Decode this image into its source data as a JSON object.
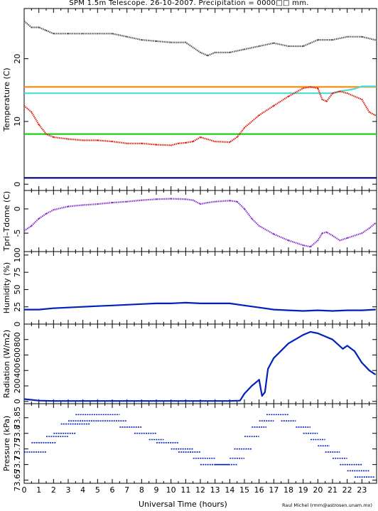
{
  "title": "SPM 1.5m Telescope. 26-10-2007. Precipitation = 0000□□ mm.",
  "credit": "Raul Michel (rmm@astrosen.unam.mx)",
  "chart_data": [
    {
      "type": "line",
      "panel": "temperature",
      "ylabel": "Temperature (C)",
      "ylim": [
        -1,
        28
      ],
      "yticks": [
        0,
        10,
        20
      ],
      "xlim": [
        0,
        24
      ],
      "series": [
        {
          "color": "#555555",
          "style": "dots",
          "x": [
            0,
            0.5,
            1,
            1.5,
            2,
            3,
            4,
            5,
            6,
            7,
            8,
            9,
            10,
            11,
            12,
            12.5,
            13,
            14,
            15,
            16,
            17,
            18,
            19,
            19.5,
            20,
            21,
            22,
            23,
            23.9
          ],
          "y": [
            26,
            25,
            25,
            24.5,
            24,
            24,
            24,
            24,
            24,
            23.5,
            23,
            22.8,
            22.6,
            22.6,
            21,
            20.5,
            21,
            21,
            21.5,
            22,
            22.5,
            22,
            22,
            22.5,
            23,
            23,
            23.5,
            23.5,
            23
          ]
        },
        {
          "color": "#ff8800",
          "style": "line",
          "x": [
            0,
            24
          ],
          "y": [
            15.5,
            15.5
          ]
        },
        {
          "color": "#44dddd",
          "style": "line",
          "x": [
            0,
            20,
            21,
            21.5,
            22,
            22.5,
            23,
            23.9
          ],
          "y": [
            14.5,
            14.5,
            14.5,
            14.8,
            15,
            15.2,
            15.6,
            15.6
          ]
        },
        {
          "color": "#22cc22",
          "style": "line",
          "x": [
            0,
            24
          ],
          "y": [
            8,
            8
          ]
        },
        {
          "color": "#dd2211",
          "style": "dots",
          "x": [
            0,
            0.5,
            1,
            1.5,
            2,
            3,
            4,
            5,
            6,
            7,
            8,
            9,
            10,
            10.5,
            11,
            11.5,
            12,
            13,
            14,
            14.5,
            15,
            16,
            17,
            18,
            19,
            19.5,
            20,
            20.3,
            20.6,
            21,
            21.5,
            22,
            23,
            23.5,
            23.9
          ],
          "y": [
            12.5,
            11.5,
            9.5,
            8,
            7.5,
            7.2,
            7,
            7,
            6.8,
            6.5,
            6.5,
            6.3,
            6.2,
            6.5,
            6.6,
            6.8,
            7.5,
            6.8,
            6.7,
            7.5,
            9,
            11,
            12.5,
            14,
            15.3,
            15.5,
            15.3,
            13.5,
            13.2,
            14.5,
            14.8,
            14.5,
            13.5,
            11.5,
            11
          ]
        },
        {
          "color": "#000080",
          "style": "line",
          "x": [
            0,
            24
          ],
          "y": [
            1,
            1
          ]
        }
      ]
    },
    {
      "type": "line",
      "panel": "tpri-tdome",
      "ylabel": "Tpri–Tdome (C)",
      "ylim": [
        -8.8,
        3.8
      ],
      "yticks": [
        -5,
        0
      ],
      "xlim": [
        0,
        24
      ],
      "series": [
        {
          "color": "#8833cc",
          "style": "dots",
          "x": [
            0,
            0.5,
            1,
            1.5,
            2,
            3,
            4,
            5,
            6,
            7,
            8,
            9,
            10,
            11,
            11.5,
            12,
            12.5,
            13,
            14,
            14.5,
            15,
            15.5,
            16,
            17,
            18,
            19,
            19.5,
            20,
            20.3,
            20.6,
            21,
            21.5,
            22,
            23,
            23.5,
            23.9
          ],
          "y": [
            -4.5,
            -3.5,
            -2,
            -1,
            -0.2,
            0.5,
            0.8,
            1,
            1.3,
            1.5,
            1.8,
            2,
            2.1,
            2,
            1.8,
            1,
            1.3,
            1.5,
            1.7,
            1.5,
            0,
            -2,
            -3.5,
            -5.2,
            -6.5,
            -7.5,
            -7.8,
            -6.5,
            -5,
            -4.8,
            -5.5,
            -6.5,
            -6,
            -5,
            -4,
            -3
          ]
        }
      ]
    },
    {
      "type": "line",
      "panel": "humidity",
      "ylabel": "Humidity (%)",
      "ylim": [
        0,
        105
      ],
      "yticks": [
        0,
        25,
        50,
        75,
        100
      ],
      "xlim": [
        0,
        24
      ],
      "series": [
        {
          "color": "#0022bb",
          "style": "line",
          "x": [
            0,
            1,
            2,
            3,
            4,
            5,
            6,
            7,
            8,
            9,
            10,
            11,
            12,
            13,
            14,
            15,
            16,
            17,
            18,
            19,
            20,
            21,
            22,
            23,
            23.9
          ],
          "y": [
            21,
            21,
            23,
            24,
            25,
            26,
            27,
            28,
            29,
            30,
            30,
            31,
            30,
            30,
            30,
            27,
            24,
            21,
            20,
            19,
            20,
            19,
            20,
            20,
            21
          ]
        }
      ]
    },
    {
      "type": "line",
      "panel": "radiation",
      "ylabel": "Radiation (W/m2)",
      "ylim": [
        -30,
        1000
      ],
      "yticks": [
        0,
        200,
        400,
        600,
        800
      ],
      "xlim": [
        0,
        24
      ],
      "series": [
        {
          "color": "#0022bb",
          "style": "line",
          "x": [
            0,
            1,
            2,
            4,
            6,
            8,
            10,
            12,
            14,
            14.7,
            15,
            15.5,
            16,
            16.2,
            16.4,
            16.6,
            17,
            18,
            19,
            19.5,
            20,
            21,
            21.7,
            22,
            22.5,
            23,
            23.5,
            23.9
          ],
          "y": [
            30,
            10,
            5,
            5,
            5,
            5,
            5,
            5,
            5,
            10,
            100,
            200,
            280,
            70,
            120,
            420,
            560,
            750,
            860,
            900,
            880,
            800,
            680,
            720,
            650,
            500,
            400,
            350
          ]
        }
      ]
    },
    {
      "type": "scatter",
      "panel": "pressure",
      "ylabel": "Pressure (kPa)",
      "ylim": [
        73.64,
        73.895
      ],
      "ytick_labels": [
        "73.65",
        "73.7",
        "73.75",
        "73.8",
        "73.85"
      ],
      "yticks": [
        73.65,
        73.7,
        73.75,
        73.8,
        73.85
      ],
      "xlim": [
        0,
        24
      ],
      "xticks": [
        0,
        1,
        2,
        3,
        4,
        5,
        6,
        7,
        8,
        9,
        10,
        11,
        12,
        13,
        14,
        15,
        16,
        17,
        18,
        19,
        20,
        21,
        22,
        23
      ],
      "xlabel": "Universal Time (hours)",
      "series": [
        {
          "color": "#0022bb",
          "style": "dashes",
          "segments": [
            [
              0,
              1.5,
              73.74
            ],
            [
              0.5,
              2.2,
              73.77
            ],
            [
              1.5,
              3,
              73.79
            ],
            [
              2,
              3.5,
              73.8
            ],
            [
              2.5,
              4.5,
              73.83
            ],
            [
              3,
              5,
              73.84
            ],
            [
              3.5,
              6.5,
              73.86
            ],
            [
              5,
              7,
              73.84
            ],
            [
              6.5,
              8,
              73.82
            ],
            [
              7.5,
              9,
              73.8
            ],
            [
              8.5,
              9.5,
              73.78
            ],
            [
              9,
              10.5,
              73.77
            ],
            [
              10,
              11.5,
              73.75
            ],
            [
              10.5,
              12,
              73.74
            ],
            [
              11.5,
              13,
              73.72
            ],
            [
              12,
              14,
              73.7
            ],
            [
              13,
              14.5,
              73.7
            ],
            [
              14,
              15,
              73.72
            ],
            [
              14.3,
              15.5,
              73.75
            ],
            [
              15,
              16,
              73.79
            ],
            [
              15.5,
              16.5,
              73.82
            ],
            [
              16,
              17,
              73.84
            ],
            [
              16.5,
              18,
              73.86
            ],
            [
              17.5,
              18.5,
              73.84
            ],
            [
              18.5,
              19.5,
              73.82
            ],
            [
              19,
              20,
              73.8
            ],
            [
              19.5,
              20.5,
              73.78
            ],
            [
              20,
              20.8,
              73.76
            ],
            [
              20.5,
              21.5,
              73.74
            ],
            [
              21,
              22,
              73.72
            ],
            [
              21.5,
              23,
              73.7
            ],
            [
              22,
              23.5,
              73.68
            ],
            [
              22.5,
              23.9,
              73.66
            ]
          ]
        }
      ]
    }
  ]
}
